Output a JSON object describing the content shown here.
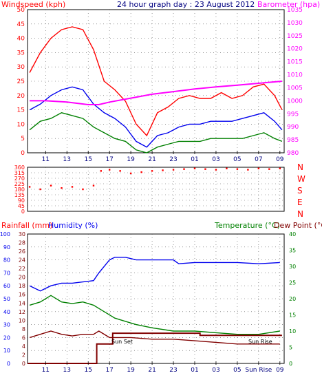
{
  "chart_data": [
    {
      "type": "line",
      "title": "24 hour graph day : 23 August 2012",
      "ylabel": "Windspeed (kph)",
      "y2label": "Barometer (hpa)",
      "x_ticks": [
        "11",
        "13",
        "15",
        "17",
        "19",
        "21",
        "23",
        "01",
        "03",
        "05",
        "07",
        "09"
      ],
      "x_hours": [
        11,
        13,
        15,
        17,
        19,
        21,
        23,
        25,
        27,
        29,
        31,
        33
      ],
      "xlim": [
        9.3,
        33.4
      ],
      "ylim": [
        0,
        50
      ],
      "y_ticks": [
        "0",
        "5",
        "10",
        "15",
        "20",
        "25",
        "30",
        "35",
        "40",
        "45",
        "50"
      ],
      "y2lim": [
        980,
        1035
      ],
      "y2_ticks": [
        "980",
        "985",
        "990",
        "995",
        "1000",
        "1005",
        "1010",
        "1015",
        "1020",
        "1025",
        "1030",
        "1035"
      ],
      "grid": true,
      "series": [
        {
          "name": "gust",
          "color": "#ff0000",
          "x": [
            9.5,
            10.5,
            11.5,
            12.5,
            13.5,
            14.5,
            15.5,
            16.5,
            17.5,
            18.5,
            19.5,
            20.5,
            21.5,
            22.5,
            23.5,
            24.5,
            25.5,
            26.5,
            27.5,
            28.5,
            29.5,
            30.5,
            31.5,
            32.5,
            33.2
          ],
          "y": [
            28,
            35,
            40,
            43,
            44,
            43,
            36,
            25,
            22,
            18,
            10,
            6,
            14,
            16,
            19,
            20,
            19,
            19,
            21,
            19,
            20,
            23,
            24,
            20,
            15
          ]
        },
        {
          "name": "average",
          "color": "#0000ee",
          "x": [
            9.5,
            10.5,
            11.5,
            12.5,
            13.5,
            14.5,
            15.5,
            16.5,
            17.5,
            18.5,
            19.5,
            20.5,
            21.5,
            22.5,
            23.5,
            24.5,
            25.5,
            26.5,
            27.5,
            28.5,
            29.5,
            30.5,
            31.5,
            32.5,
            33.2
          ],
          "y": [
            15,
            17,
            20,
            22,
            23,
            22,
            17,
            14,
            12,
            9,
            4,
            2,
            6,
            7,
            9,
            10,
            10,
            11,
            11,
            11,
            12,
            13,
            14,
            11,
            8
          ]
        },
        {
          "name": "lull",
          "color": "#008000",
          "x": [
            9.5,
            10.5,
            11.5,
            12.5,
            13.5,
            14.5,
            15.5,
            16.5,
            17.5,
            18.5,
            19.5,
            20.5,
            21.5,
            22.5,
            23.5,
            24.5,
            25.5,
            26.5,
            27.5,
            28.5,
            29.5,
            30.5,
            31.5,
            32.5,
            33.2
          ],
          "y": [
            8,
            11,
            12,
            14,
            13,
            12,
            9,
            7,
            5,
            4,
            1,
            0,
            2,
            3,
            4,
            4,
            4,
            5,
            5,
            5,
            5,
            6,
            7,
            5,
            4
          ]
        },
        {
          "name": "barometer",
          "color": "#ff00ff",
          "axis": "right",
          "x": [
            9.5,
            11,
            13,
            15,
            16,
            17,
            19,
            21,
            23,
            25,
            27,
            29,
            31,
            33.2
          ],
          "y": [
            1000,
            1000,
            999.5,
            998.5,
            998.5,
            999.5,
            1001,
            1002.5,
            1003.5,
            1004.5,
            1005.3,
            1006,
            1006.7,
            1007.5
          ]
        }
      ]
    },
    {
      "type": "scatter",
      "ylabel_right": [
        "N",
        "W",
        "S",
        "E",
        "N"
      ],
      "x_ticks": [
        "11",
        "13",
        "15",
        "17",
        "19",
        "21",
        "23",
        "01",
        "03",
        "05",
        "07",
        "09"
      ],
      "ylim": [
        0,
        360
      ],
      "y_ticks": [
        "0",
        "45",
        "90",
        "135",
        "180",
        "225",
        "270",
        "315",
        "360"
      ],
      "series": [
        {
          "name": "wind direction",
          "color": "#ff0000",
          "x": [
            9.5,
            10.5,
            11.5,
            12.5,
            13.5,
            14.5,
            15.5,
            16.2,
            17,
            18,
            19,
            20,
            21,
            22,
            23,
            24,
            25,
            26,
            27,
            28,
            29,
            30,
            31,
            32,
            33
          ],
          "y": [
            200,
            180,
            210,
            190,
            200,
            180,
            210,
            330,
            340,
            330,
            310,
            320,
            330,
            335,
            340,
            345,
            350,
            345,
            340,
            350,
            345,
            340,
            350,
            345,
            350
          ]
        }
      ]
    },
    {
      "type": "line",
      "ylabel_left": "Rainfall (mm)",
      "ylabel_left2": "Humidity (%)",
      "ylabel_right": "Temperature (°C)",
      "ylabel_right2": "Dew Point (°C)",
      "x_ticks": [
        "11",
        "13",
        "15",
        "17",
        "19",
        "21",
        "23",
        "01",
        "03",
        "05",
        "Sun Rise",
        "09"
      ],
      "annotations": [
        "Sun Set",
        "Sun Rise"
      ],
      "rain_ylim": [
        0,
        30
      ],
      "rain_ticks": [
        "0",
        "2",
        "4",
        "6",
        "8",
        "10",
        "12",
        "14",
        "16",
        "18",
        "20",
        "22",
        "24",
        "26",
        "28",
        "30"
      ],
      "humidity_ylim": [
        0,
        100
      ],
      "humidity_ticks": [
        "0",
        "10",
        "20",
        "30",
        "40",
        "50",
        "60",
        "70",
        "80",
        "90",
        "100"
      ],
      "temp_ylim": [
        0,
        40
      ],
      "temp_ticks": [
        "0",
        "5",
        "10",
        "15",
        "20",
        "25",
        "30",
        "35",
        "40"
      ],
      "series": [
        {
          "name": "humidity",
          "color": "#0000ee",
          "axis": "humidity",
          "x": [
            9.5,
            10.5,
            11.5,
            12.5,
            13.5,
            14.5,
            15.5,
            16,
            17,
            17.5,
            18.5,
            19.5,
            21,
            23,
            23.5,
            25,
            27,
            29,
            31,
            33
          ],
          "y": [
            60,
            56,
            60,
            62,
            62,
            63,
            64,
            70,
            80,
            82,
            82,
            80,
            80,
            80,
            77,
            78,
            78,
            78,
            77,
            78
          ]
        },
        {
          "name": "temperature",
          "color": "#008000",
          "axis": "temp",
          "x": [
            9.5,
            10.5,
            11.5,
            12.5,
            13.5,
            14.5,
            15.5,
            16.5,
            17.5,
            18.5,
            19.5,
            21,
            23,
            25,
            27,
            29,
            31,
            33
          ],
          "y": [
            18,
            19,
            21,
            19,
            18.5,
            19,
            18,
            16,
            14,
            13,
            12,
            11,
            10,
            10,
            9.5,
            9,
            9,
            10
          ]
        },
        {
          "name": "dew point",
          "color": "#800000",
          "axis": "temp",
          "x": [
            9.5,
            10.5,
            11.5,
            12.5,
            13.5,
            14.5,
            15.5,
            16,
            17,
            18,
            19,
            21,
            23,
            25,
            27,
            29,
            31,
            33
          ],
          "y": [
            8,
            9,
            10,
            9,
            8.5,
            9,
            9,
            10,
            8,
            8,
            8,
            7.5,
            7.5,
            7,
            6.5,
            6,
            6,
            6
          ]
        },
        {
          "name": "rainfall",
          "color": "#800000",
          "axis": "rain",
          "x": [
            9.3,
            15.8,
            15.8,
            17.3,
            17.3,
            25.5,
            25.5,
            33.2
          ],
          "y": [
            0,
            0,
            4.5,
            4.5,
            7,
            7,
            6.5,
            6.5
          ]
        }
      ]
    }
  ]
}
